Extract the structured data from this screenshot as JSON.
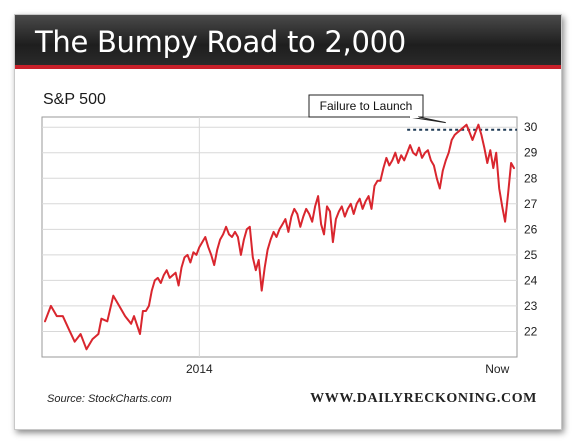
{
  "header": {
    "title": "The Bumpy Road to 2,000"
  },
  "footer": {
    "source": "Source: StockCharts.com",
    "brand": "WWW.DAILYRECKONING.COM"
  },
  "colors": {
    "line": "#d9262e",
    "reference": "#1f3a55",
    "banner_accent": "#c8202a"
  },
  "chart_data": {
    "type": "line",
    "title": "S&P 500",
    "y_ticks": [
      22,
      23,
      24,
      25,
      26,
      27,
      28,
      29,
      30
    ],
    "ylim": [
      21,
      30.4
    ],
    "x_tick_labels": [
      "2014",
      "Now"
    ],
    "x_tick_positions": [
      53,
      152
    ],
    "xlim": [
      0,
      155
    ],
    "grid": true,
    "y_axis_side": "right",
    "reference_line": {
      "y": 29.9,
      "style": "dashed",
      "x_start": 123
    },
    "annotation": {
      "text": "Failure to Launch",
      "x": 136,
      "y": 30.1
    },
    "series": [
      {
        "values": [
          [
            1,
            22.4
          ],
          [
            3,
            23.0
          ],
          [
            5,
            22.6
          ],
          [
            7,
            22.6
          ],
          [
            9,
            22.1
          ],
          [
            11,
            21.6
          ],
          [
            13,
            21.9
          ],
          [
            15,
            21.3
          ],
          [
            17,
            21.7
          ],
          [
            19,
            21.9
          ],
          [
            20,
            22.5
          ],
          [
            22,
            22.4
          ],
          [
            24,
            23.4
          ],
          [
            26,
            23.0
          ],
          [
            28,
            22.6
          ],
          [
            30,
            22.3
          ],
          [
            31,
            22.6
          ],
          [
            33,
            21.9
          ],
          [
            34,
            22.8
          ],
          [
            35,
            22.8
          ],
          [
            36,
            23.0
          ],
          [
            37,
            23.6
          ],
          [
            38,
            24.0
          ],
          [
            39,
            24.1
          ],
          [
            40,
            23.9
          ],
          [
            41,
            24.2
          ],
          [
            42,
            24.4
          ],
          [
            43,
            24.1
          ],
          [
            45,
            24.3
          ],
          [
            46,
            23.8
          ],
          [
            47,
            24.5
          ],
          [
            48,
            24.9
          ],
          [
            49,
            25.0
          ],
          [
            50,
            24.7
          ],
          [
            51,
            25.1
          ],
          [
            52,
            25.0
          ],
          [
            53,
            25.3
          ],
          [
            54,
            25.5
          ],
          [
            55,
            25.7
          ],
          [
            56,
            25.3
          ],
          [
            57,
            25.0
          ],
          [
            58,
            24.6
          ],
          [
            59,
            25.2
          ],
          [
            60,
            25.6
          ],
          [
            61,
            25.8
          ],
          [
            62,
            26.1
          ],
          [
            63,
            25.8
          ],
          [
            64,
            25.7
          ],
          [
            65,
            25.9
          ],
          [
            66,
            25.7
          ],
          [
            67,
            25.0
          ],
          [
            68,
            25.6
          ],
          [
            69,
            26.0
          ],
          [
            70,
            26.1
          ],
          [
            71,
            24.9
          ],
          [
            72,
            24.4
          ],
          [
            73,
            24.8
          ],
          [
            74,
            23.6
          ],
          [
            75,
            24.5
          ],
          [
            76,
            25.2
          ],
          [
            77,
            25.6
          ],
          [
            78,
            25.9
          ],
          [
            79,
            25.7
          ],
          [
            80,
            26.0
          ],
          [
            81,
            26.2
          ],
          [
            82,
            26.4
          ],
          [
            83,
            25.9
          ],
          [
            84,
            26.5
          ],
          [
            85,
            26.8
          ],
          [
            86,
            26.6
          ],
          [
            87,
            26.1
          ],
          [
            88,
            26.5
          ],
          [
            89,
            26.8
          ],
          [
            90,
            26.6
          ],
          [
            91,
            26.3
          ],
          [
            92,
            26.9
          ],
          [
            93,
            27.3
          ],
          [
            94,
            26.2
          ],
          [
            95,
            25.8
          ],
          [
            96,
            26.9
          ],
          [
            97,
            26.7
          ],
          [
            98,
            25.5
          ],
          [
            99,
            26.4
          ],
          [
            100,
            26.7
          ],
          [
            101,
            26.9
          ],
          [
            102,
            26.5
          ],
          [
            103,
            26.8
          ],
          [
            104,
            27.0
          ],
          [
            105,
            26.6
          ],
          [
            106,
            27.0
          ],
          [
            107,
            27.2
          ],
          [
            108,
            26.8
          ],
          [
            109,
            27.1
          ],
          [
            110,
            27.3
          ],
          [
            111,
            26.8
          ],
          [
            112,
            27.7
          ],
          [
            113,
            27.9
          ],
          [
            114,
            27.9
          ],
          [
            115,
            28.4
          ],
          [
            116,
            28.8
          ],
          [
            117,
            28.5
          ],
          [
            118,
            28.7
          ],
          [
            119,
            29.0
          ],
          [
            120,
            28.6
          ],
          [
            121,
            28.9
          ],
          [
            122,
            28.7
          ],
          [
            123,
            29.0
          ],
          [
            124,
            29.3
          ],
          [
            125,
            29.0
          ],
          [
            126,
            28.9
          ],
          [
            127,
            29.2
          ],
          [
            128,
            28.8
          ],
          [
            129,
            29.0
          ],
          [
            130,
            29.1
          ],
          [
            131,
            28.7
          ],
          [
            132,
            28.5
          ],
          [
            133,
            28.0
          ],
          [
            134,
            27.6
          ],
          [
            135,
            28.3
          ],
          [
            136,
            28.7
          ],
          [
            137,
            29.0
          ],
          [
            138,
            29.5
          ],
          [
            139,
            29.7
          ],
          [
            140,
            29.8
          ],
          [
            141,
            29.9
          ],
          [
            142,
            30.0
          ],
          [
            143,
            30.1
          ],
          [
            144,
            29.8
          ],
          [
            145,
            29.5
          ],
          [
            146,
            29.8
          ],
          [
            147,
            30.1
          ],
          [
            148,
            29.7
          ],
          [
            149,
            29.2
          ],
          [
            150,
            28.6
          ],
          [
            151,
            29.1
          ],
          [
            152,
            28.4
          ],
          [
            153,
            29.0
          ],
          [
            154,
            27.6
          ],
          [
            155,
            26.9
          ],
          [
            156,
            26.3
          ],
          [
            157,
            27.4
          ],
          [
            158,
            28.6
          ],
          [
            159,
            28.4
          ]
        ]
      }
    ]
  }
}
